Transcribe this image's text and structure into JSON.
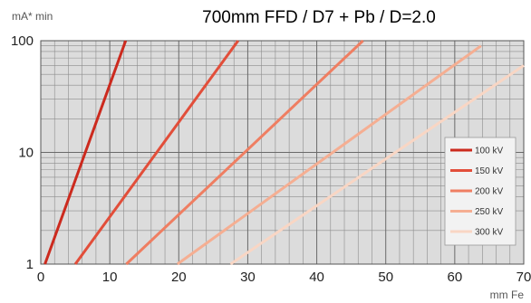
{
  "chart_data": {
    "type": "line",
    "title": "700mm FFD / D7 + Pb / D=2.0",
    "xlabel": "mm Fe",
    "ylabel": "mA* min",
    "xlim": [
      0,
      70
    ],
    "ylim": [
      1,
      100
    ],
    "y_scale": "log",
    "grid": true,
    "legend_position": "right",
    "x_ticks": [
      "0",
      "10",
      "20",
      "30",
      "40",
      "50",
      "60",
      "70"
    ],
    "y_ticks": [
      "1",
      "10",
      "100"
    ],
    "series": [
      {
        "name": "100 kV",
        "color": "#cc2a1e",
        "x": [
          0.6,
          12.3
        ],
        "y": [
          1,
          100
        ]
      },
      {
        "name": "150 kV",
        "color": "#e24e3a",
        "x": [
          5.0,
          28.6
        ],
        "y": [
          1,
          100
        ]
      },
      {
        "name": "200 kV",
        "color": "#ef7e62",
        "x": [
          12.4,
          46.7
        ],
        "y": [
          1,
          100
        ]
      },
      {
        "name": "250 kV",
        "color": "#f5ae92",
        "x": [
          19.8,
          63.8
        ],
        "y": [
          1,
          90
        ]
      },
      {
        "name": "300 kV",
        "color": "#f9d6c4",
        "x": [
          27.5,
          70
        ],
        "y": [
          1,
          60
        ]
      }
    ]
  }
}
